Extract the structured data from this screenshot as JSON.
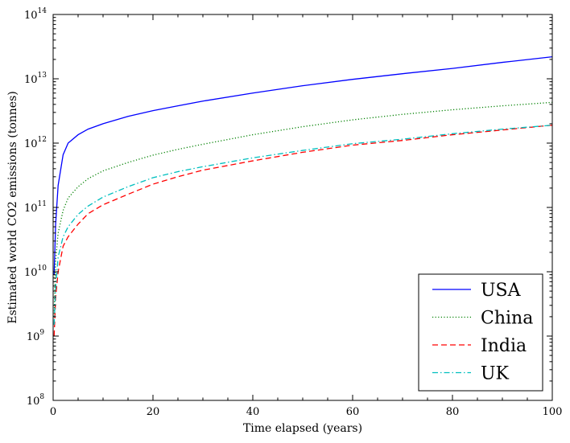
{
  "chart_data": {
    "type": "line",
    "title": "",
    "xlabel": "Time elapsed (years)",
    "ylabel": "Estimated world CO2 emissions (tonnes)",
    "xlim": [
      0,
      100
    ],
    "ylim": [
      100000000,
      100000000000000
    ],
    "yscale": "log",
    "grid": false,
    "legend_position": "bottom-right",
    "x_ticks": [
      0,
      20,
      40,
      60,
      80,
      100
    ],
    "x_tick_labels": [
      "0",
      "20",
      "40",
      "60",
      "80",
      "100"
    ],
    "y_ticks": [
      100000000,
      1000000000,
      10000000000,
      100000000000,
      1000000000000,
      10000000000000,
      100000000000000
    ],
    "y_tick_bases": [
      "10",
      "10",
      "10",
      "10",
      "10",
      "10",
      "10"
    ],
    "y_tick_exponents": [
      "8",
      "9",
      "10",
      "11",
      "12",
      "13",
      "14"
    ],
    "x": [
      0.2,
      0.5,
      1,
      2,
      3,
      5,
      7,
      10,
      15,
      20,
      25,
      30,
      40,
      50,
      60,
      70,
      80,
      90,
      100
    ],
    "series": [
      {
        "name": "USA",
        "color": "#0000ff",
        "dash": "",
        "values": [
          9000000000.0,
          55000000000.0,
          220000000000.0,
          660000000000.0,
          1000000000000.0,
          1350000000000.0,
          1650000000000.0,
          2000000000000.0,
          2600000000000.0,
          3200000000000.0,
          3800000000000.0,
          4500000000000.0,
          6000000000000.0,
          7800000000000.0,
          9800000000000.0,
          12000000000000.0,
          14500000000000.0,
          18000000000000.0,
          22000000000000.0
        ]
      },
      {
        "name": "China",
        "color": "#008000",
        "dash": "1.2,2.4",
        "values": [
          2000000000.0,
          15000000000.0,
          40000000000.0,
          90000000000.0,
          140000000000.0,
          210000000000.0,
          280000000000.0,
          370000000000.0,
          500000000000.0,
          650000000000.0,
          800000000000.0,
          960000000000.0,
          1350000000000.0,
          1800000000000.0,
          2300000000000.0,
          2800000000000.0,
          3300000000000.0,
          3800000000000.0,
          4300000000000.0
        ]
      },
      {
        "name": "India",
        "color": "#ff0000",
        "dash": "7,4",
        "values": [
          1000000000.0,
          4000000000.0,
          10000000000.0,
          25000000000.0,
          35000000000.0,
          55000000000.0,
          80000000000.0,
          110000000000.0,
          160000000000.0,
          230000000000.0,
          300000000000.0,
          380000000000.0,
          530000000000.0,
          720000000000.0,
          930000000000.0,
          1100000000000.0,
          1350000000000.0,
          1600000000000.0,
          1900000000000.0
        ]
      },
      {
        "name": "UK",
        "color": "#00bfbf",
        "dash": "7,3,1.5,3",
        "values": [
          1500000000.0,
          5500000000.0,
          17000000000.0,
          35000000000.0,
          50000000000.0,
          78000000000.0,
          105000000000.0,
          145000000000.0,
          210000000000.0,
          290000000000.0,
          360000000000.0,
          430000000000.0,
          590000000000.0,
          770000000000.0,
          980000000000.0,
          1150000000000.0,
          1400000000000.0,
          1650000000000.0,
          1900000000000.0
        ]
      }
    ]
  }
}
